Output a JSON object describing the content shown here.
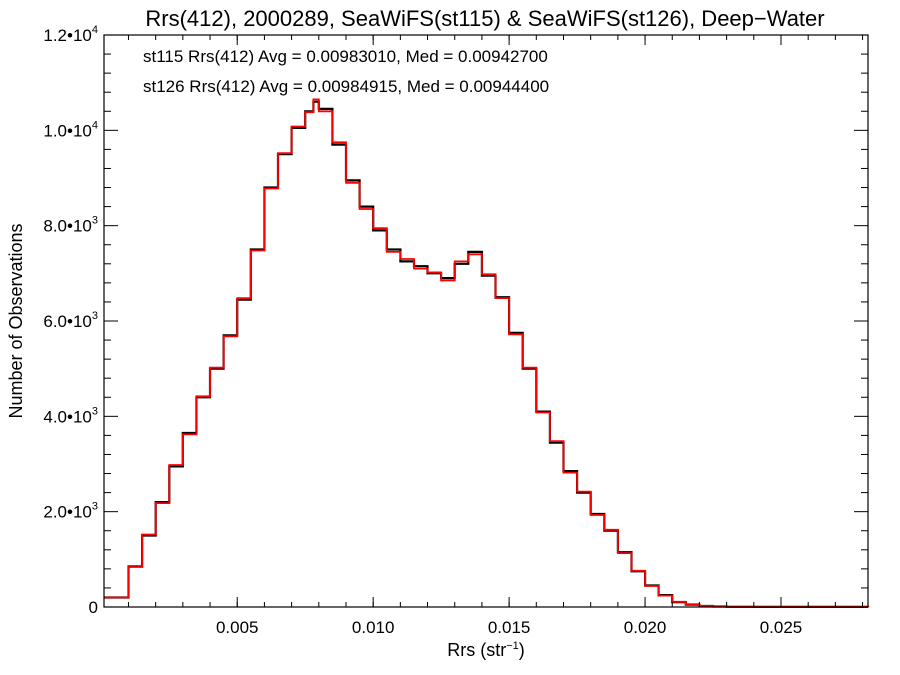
{
  "chart_data": {
    "type": "line",
    "step": true,
    "title": "Rrs(412), 2000289, SeaWiFS(st115) & SeaWiFS(st126), Deep−Water",
    "xlabel": {
      "base": "Rrs (str",
      "sup": "−1",
      "tail": ")"
    },
    "ylabel": "Number of Observations",
    "xlim": [
      0.0001,
      0.0282
    ],
    "ylim": [
      0,
      12000
    ],
    "xticks": [
      {
        "value": 0.005,
        "label": "0.005"
      },
      {
        "value": 0.01,
        "label": "0.010"
      },
      {
        "value": 0.015,
        "label": "0.015"
      },
      {
        "value": 0.02,
        "label": "0.020"
      },
      {
        "value": 0.025,
        "label": "0.025"
      }
    ],
    "yticks": [
      {
        "value": 0,
        "mant": "0",
        "exp": ""
      },
      {
        "value": 2000,
        "mant": "2.0•10",
        "exp": "3"
      },
      {
        "value": 4000,
        "mant": "4.0•10",
        "exp": "3"
      },
      {
        "value": 6000,
        "mant": "6.0•10",
        "exp": "3"
      },
      {
        "value": 8000,
        "mant": "8.0•10",
        "exp": "3"
      },
      {
        "value": 10000,
        "mant": "1.0•10",
        "exp": "4"
      },
      {
        "value": 12000,
        "mant": "1.2•10",
        "exp": "4"
      }
    ],
    "annotations": [
      {
        "text": "st115 Rrs(412) Avg = 0.00983010, Med = 0.00942700",
        "color": "#000000"
      },
      {
        "text": "st126 Rrs(412) Avg = 0.00984915, Med = 0.00944400",
        "color": "#ff0000"
      }
    ],
    "series": [
      {
        "color": "#000000",
        "x": [
          0.0001,
          0.001,
          0.0015,
          0.002,
          0.0025,
          0.003,
          0.0035,
          0.004,
          0.0045,
          0.005,
          0.0055,
          0.006,
          0.0065,
          0.007,
          0.0075,
          0.0078,
          0.008,
          0.0085,
          0.009,
          0.0095,
          0.01,
          0.0105,
          0.011,
          0.0115,
          0.012,
          0.0125,
          0.013,
          0.0135,
          0.014,
          0.0145,
          0.015,
          0.0155,
          0.016,
          0.0165,
          0.017,
          0.0175,
          0.018,
          0.0185,
          0.019,
          0.0195,
          0.02,
          0.0205,
          0.021,
          0.0215,
          0.022,
          0.0225,
          0.023,
          0.024,
          0.025,
          0.0282
        ],
        "y": [
          200,
          850,
          1500,
          2200,
          2950,
          3650,
          4400,
          5000,
          5700,
          6450,
          7500,
          8800,
          9500,
          10050,
          10400,
          10600,
          10450,
          9700,
          8950,
          8400,
          7900,
          7500,
          7250,
          7150,
          7000,
          6900,
          7200,
          7450,
          6950,
          6500,
          5750,
          5000,
          4100,
          3450,
          2850,
          2400,
          1950,
          1600,
          1150,
          750,
          450,
          250,
          100,
          50,
          20,
          10,
          5,
          3,
          2,
          0
        ]
      },
      {
        "color": "#ff0000",
        "x": [
          0.0001,
          0.001,
          0.0015,
          0.002,
          0.0025,
          0.003,
          0.0035,
          0.004,
          0.0045,
          0.005,
          0.0055,
          0.006,
          0.0065,
          0.007,
          0.0075,
          0.0078,
          0.008,
          0.0085,
          0.009,
          0.0095,
          0.01,
          0.0105,
          0.011,
          0.0115,
          0.012,
          0.0125,
          0.013,
          0.0135,
          0.014,
          0.0145,
          0.015,
          0.0155,
          0.016,
          0.0165,
          0.017,
          0.0175,
          0.018,
          0.0185,
          0.019,
          0.0195,
          0.02,
          0.0205,
          0.021,
          0.0215,
          0.022,
          0.0225,
          0.023,
          0.024,
          0.025,
          0.0282
        ],
        "y": [
          200,
          860,
          1520,
          2180,
          2980,
          3620,
          4420,
          5020,
          5680,
          6480,
          7480,
          8780,
          9520,
          10080,
          10380,
          10650,
          10400,
          9750,
          8900,
          8350,
          7950,
          7450,
          7300,
          7100,
          7020,
          6850,
          7250,
          7400,
          6980,
          6480,
          5720,
          5020,
          4080,
          3480,
          2820,
          2420,
          1930,
          1620,
          1130,
          760,
          440,
          240,
          110,
          45,
          20,
          10,
          5,
          3,
          2,
          0
        ]
      }
    ]
  }
}
